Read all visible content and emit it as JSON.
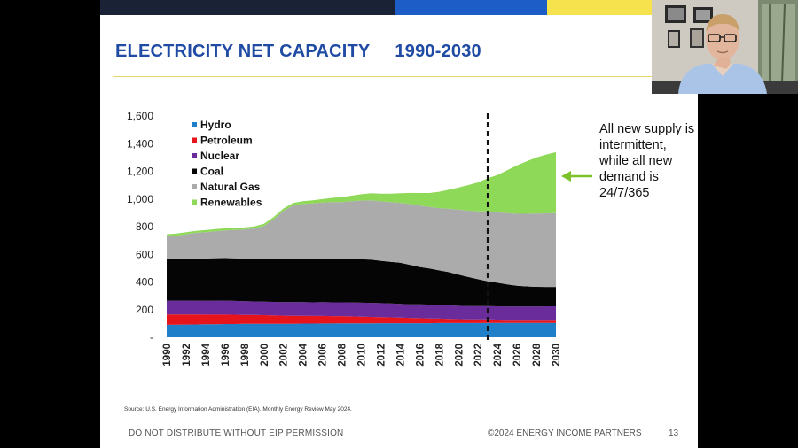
{
  "slide": {
    "title": "ELECTRICITY NET CAPACITY",
    "title_years": "1990-2030",
    "annotation": "All new supply is intermittent, while all new demand is 24/7/365",
    "source": "Source: U.S. Energy Information Administration (EIA).  Monthly Energy Review May 2024.",
    "footer_left": "DO NOT DISTRIBUTE WITHOUT EIP PERMISSION",
    "footer_right": "©2024 ENERGY INCOME PARTNERS",
    "page_number": "13"
  },
  "colors": {
    "navy": "#1a2336",
    "blue": "#1c5dc7",
    "yellow": "#f5e24c",
    "arrow": "#7dc22b"
  },
  "chart_data": {
    "type": "area",
    "stacked": true,
    "title": "ELECTRICITY NET CAPACITY 1990-2030",
    "xlabel": "",
    "ylabel": "",
    "ylim": [
      0,
      1600
    ],
    "yticks": [
      0,
      200,
      400,
      600,
      800,
      1000,
      1200,
      1400,
      1600
    ],
    "ytick_labels": [
      "-",
      "200",
      "400",
      "600",
      "800",
      "1,000",
      "1,200",
      "1,400",
      "1,600"
    ],
    "x": [
      1990,
      1991,
      1992,
      1993,
      1994,
      1995,
      1996,
      1997,
      1998,
      1999,
      2000,
      2001,
      2002,
      2003,
      2004,
      2005,
      2006,
      2007,
      2008,
      2009,
      2010,
      2011,
      2012,
      2013,
      2014,
      2015,
      2016,
      2017,
      2018,
      2019,
      2020,
      2021,
      2022,
      2023,
      2024,
      2025,
      2026,
      2027,
      2028,
      2029,
      2030
    ],
    "xtick_labels": [
      "1990",
      "1992",
      "1994",
      "1996",
      "1998",
      "2000",
      "2002",
      "2004",
      "2006",
      "2008",
      "2010",
      "2012",
      "2014",
      "2016",
      "2018",
      "2020",
      "2022",
      "2024",
      "2026",
      "2028",
      "2030"
    ],
    "vertical_marker": {
      "x": 2023,
      "style": "dashed"
    },
    "legend": [
      "Hydro",
      "Petroleum",
      "Nuclear",
      "Coal",
      "Natural Gas",
      "Renewables"
    ],
    "legend_position": "top-left",
    "series": [
      {
        "name": "Hydro",
        "color": "#1f7fc8",
        "values": [
          90,
          91,
          92,
          93,
          94,
          95,
          96,
          96,
          97,
          97,
          98,
          98,
          98,
          98,
          99,
          99,
          100,
          100,
          101,
          101,
          101,
          101,
          102,
          102,
          102,
          102,
          102,
          102,
          103,
          103,
          103,
          103,
          103,
          104,
          104,
          104,
          104,
          104,
          104,
          104,
          104
        ]
      },
      {
        "name": "Petroleum",
        "color": "#e8141c",
        "values": [
          75,
          74,
          73,
          72,
          70,
          69,
          68,
          67,
          65,
          64,
          62,
          60,
          58,
          57,
          56,
          55,
          54,
          53,
          52,
          50,
          48,
          46,
          44,
          42,
          40,
          38,
          36,
          34,
          32,
          30,
          28,
          27,
          26,
          25,
          24,
          23,
          23,
          22,
          22,
          22,
          22
        ]
      },
      {
        "name": "Nuclear",
        "color": "#6a2c9a",
        "values": [
          100,
          100,
          100,
          100,
          100,
          101,
          101,
          100,
          99,
          98,
          97,
          98,
          98,
          99,
          99,
          99,
          100,
          100,
          100,
          101,
          101,
          102,
          101,
          101,
          99,
          99,
          100,
          100,
          99,
          98,
          97,
          96,
          96,
          96,
          96,
          96,
          96,
          97,
          97,
          98,
          98
        ]
      },
      {
        "name": "Coal",
        "color": "#050505",
        "values": [
          305,
          305,
          305,
          305,
          306,
          307,
          308,
          308,
          308,
          308,
          308,
          308,
          310,
          310,
          310,
          310,
          310,
          310,
          310,
          312,
          314,
          312,
          306,
          300,
          298,
          285,
          270,
          262,
          250,
          240,
          225,
          210,
          195,
          180,
          170,
          160,
          150,
          145,
          142,
          140,
          140
        ]
      },
      {
        "name": "Natural Gas",
        "color": "#ababab",
        "values": [
          160,
          165,
          175,
          185,
          190,
          195,
          200,
          205,
          210,
          220,
          240,
          290,
          350,
          390,
          400,
          405,
          410,
          415,
          415,
          420,
          425,
          430,
          430,
          432,
          433,
          440,
          445,
          445,
          450,
          458,
          470,
          480,
          490,
          505,
          510,
          515,
          520,
          525,
          530,
          532,
          534
        ]
      },
      {
        "name": "Renewables",
        "color": "#8ed957",
        "values": [
          15,
          15,
          15,
          15,
          15,
          15,
          15,
          15,
          15,
          15,
          16,
          16,
          17,
          18,
          20,
          22,
          25,
          30,
          35,
          40,
          45,
          50,
          55,
          62,
          70,
          80,
          90,
          100,
          118,
          138,
          160,
          185,
          210,
          240,
          270,
          310,
          350,
          380,
          405,
          425,
          440
        ]
      }
    ]
  }
}
